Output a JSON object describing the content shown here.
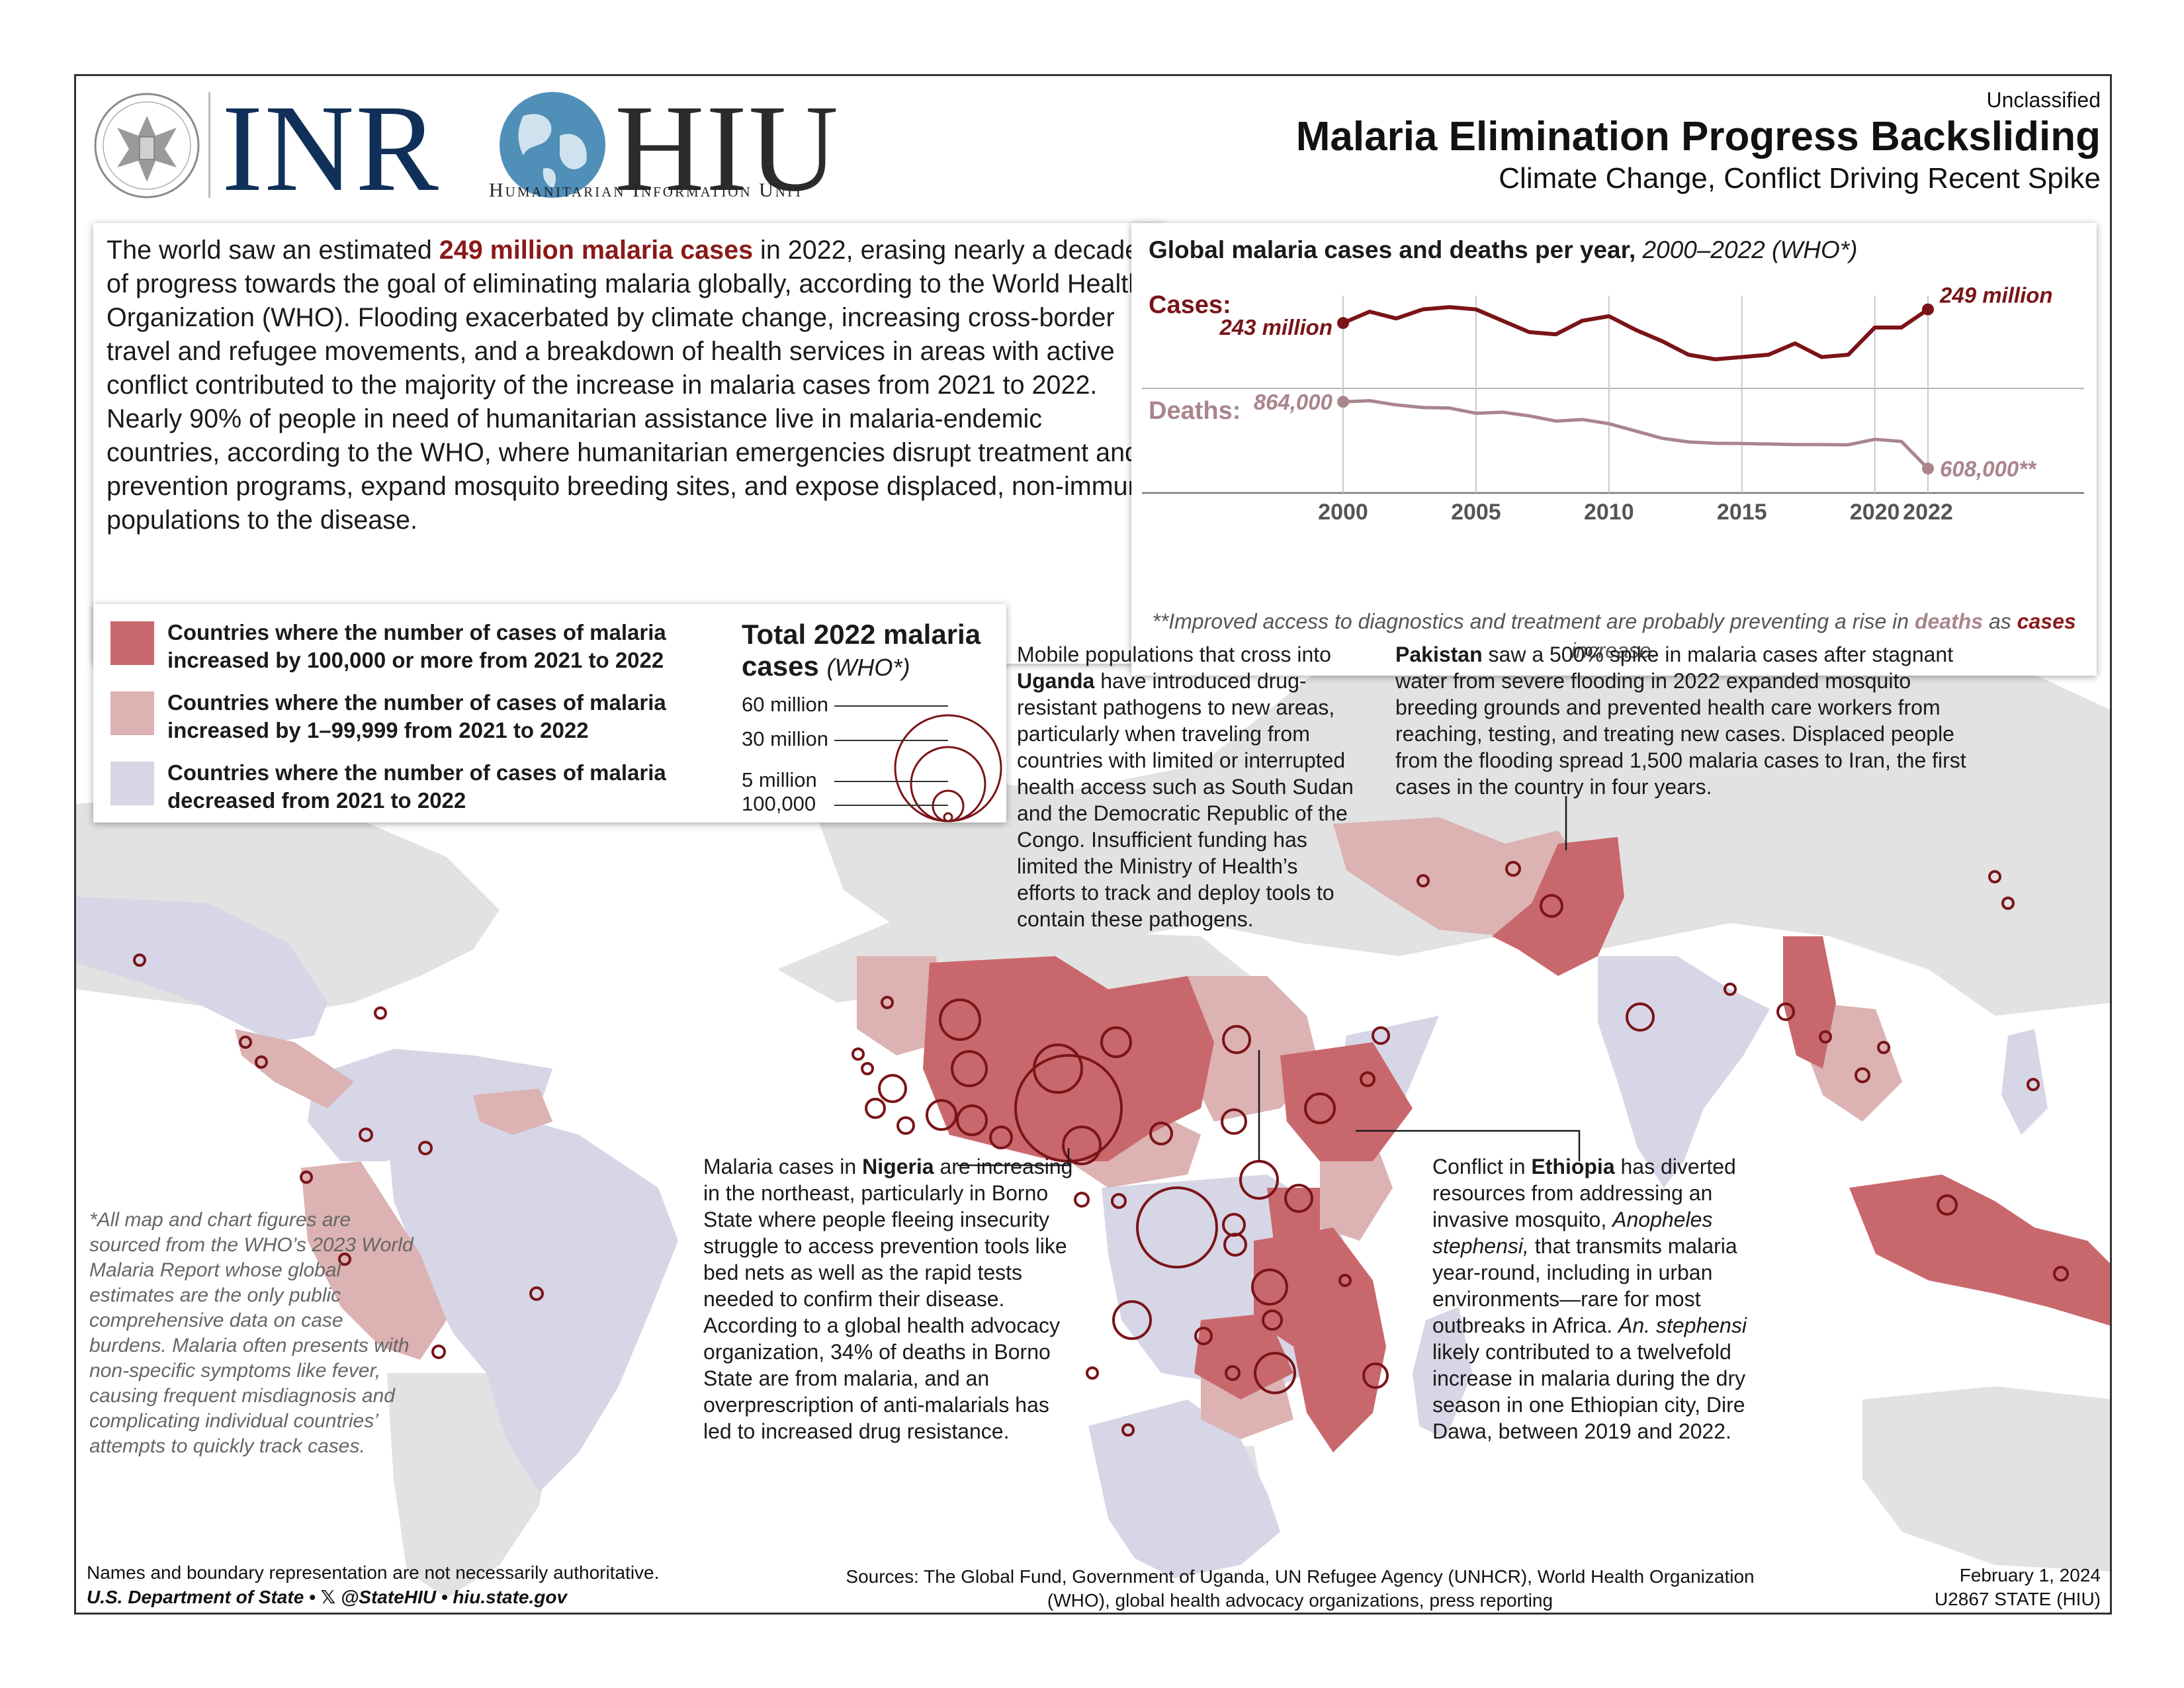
{
  "header": {
    "org_left": "INR",
    "org_right": "HIU",
    "unit_name": "Humanitarian Information Unit",
    "classification": "Unclassified",
    "title": "Malaria Elimination Progress Backsliding",
    "subtitle": "Climate Change, Conflict Driving Recent Spike"
  },
  "intro": {
    "before": "The world saw an estimated ",
    "highlight": "249 million malaria cases",
    "after": " in 2022, erasing nearly a decade of progress towards the goal of eliminating malaria globally, according to the World Health Organization (WHO). Flooding exacerbated by climate change, increasing cross-border travel and refugee movements, and a breakdown of health services in areas with active conflict contributed to the majority of the increase in malaria cases from 2021 to 2022. Nearly 90% of people in need of humanitarian assistance live in malaria-endemic countries, according to the WHO, where humanitarian emergencies disrupt treatment and prevention programs, expand mosquito breeding sites, and expose displaced, non-immune populations to the disease."
  },
  "chart_data": {
    "type": "line",
    "title": "Global malaria cases and deaths per year,",
    "title_suffix": "2000–2022 (WHO*)",
    "x": [
      2000,
      2001,
      2002,
      2003,
      2004,
      2005,
      2006,
      2007,
      2008,
      2009,
      2010,
      2011,
      2012,
      2013,
      2014,
      2015,
      2016,
      2017,
      2018,
      2019,
      2020,
      2021,
      2022
    ],
    "x_ticks": [
      "2000",
      "2005",
      "2010",
      "2015",
      "2020",
      "2022"
    ],
    "series": [
      {
        "name": "Cases:",
        "color": "#7a1418",
        "start_label": "243 million",
        "end_label": "249 million",
        "values": [
          243,
          248,
          245,
          249,
          250,
          249,
          244,
          239,
          238,
          244,
          246,
          240,
          235,
          229,
          227,
          228,
          229,
          234,
          228,
          229,
          241,
          241,
          249
        ]
      },
      {
        "name": "Deaths:",
        "color": "#a9858c",
        "start_label": "864,000",
        "end_label": "608,000**",
        "values": [
          864,
          868,
          852,
          842,
          840,
          820,
          824,
          810,
          790,
          796,
          780,
          752,
          724,
          710,
          705,
          704,
          702,
          700,
          700,
          699,
          720,
          712,
          608
        ]
      }
    ],
    "note_before": "**Improved access to diagnostics and treatment are probably preventing a rise in ",
    "note_deaths": "deaths",
    "note_mid": " as ",
    "note_cases": "cases",
    "note_after": " increase."
  },
  "legend": {
    "items": [
      {
        "color": "#c9686c",
        "label": "Countries where the number of cases of malaria increased by 100,000 or more from 2021 to 2022"
      },
      {
        "color": "#dcb2b3",
        "label": "Countries where the number of cases of malaria increased by 1–99,999 from 2021 to 2022"
      },
      {
        "color": "#d6d6e6",
        "label": "Countries where the number of cases of malaria decreased from 2021 to 2022"
      }
    ],
    "size_title": "Total 2022 malaria cases",
    "size_title_suffix": "(WHO*)",
    "sizes": [
      "60 million",
      "30 million",
      "5 million",
      "100,000"
    ]
  },
  "annotations": {
    "uganda_before": "Mobile populations that cross into ",
    "uganda_bold": "Uganda",
    "uganda_after": " have introduced drug-resistant pathogens to new areas, particularly when traveling from countries with limited or interrupted health access such as South Sudan and the Democratic Republic of the Congo. Insufficient funding has limited the Ministry of Health’s efforts to track and deploy tools to contain these pathogens.",
    "pakistan_bold": "Pakistan",
    "pakistan_after": " saw a 500% spike in malaria cases after stagnant water from severe flooding in 2022 expanded mosquito breeding grounds and prevented health care workers from reaching, testing, and treating new cases. Displaced people from the flooding spread 1,500 malaria cases to Iran, the first cases in the country in four years.",
    "nigeria_before": "Malaria cases in ",
    "nigeria_bold": "Nigeria",
    "nigeria_after": " are increasing in the northeast, particularly in Borno State where people fleeing insecurity struggle to access prevention tools like bed nets as well as the rapid tests needed to confirm their disease. According to a global health advocacy organization, 34% of deaths in Borno State are from malaria, and an overprescription of anti-malarials has led to increased drug resistance.",
    "ethiopia_before": "Conflict in ",
    "ethiopia_bold": "Ethiopia",
    "ethiopia_mid": " has diverted resources from addressing an invasive mosquito, ",
    "ethiopia_italic": "Anopheles stephensi,",
    "ethiopia_mid2": " that transmits malaria year-round, including in urban environments—rare for most outbreaks in Africa. ",
    "ethiopia_italic2": "An. stephensi",
    "ethiopia_after": " likely contributed to a twelvefold increase in malaria during the dry season in one Ethiopian city, Dire Dawa, between 2019 and 2022."
  },
  "footnote": "*All map and chart figures are sourced from the WHO’s 2023 World Malaria Report whose global estimates are the only public comprehensive data on case burdens. Malaria often presents with non-specific symptoms like fever, causing frequent misdiagnosis and complicating individual countries’ attempts to quickly track cases.",
  "footer": {
    "disclaimer": "Names and boundary representation are not necessarily authoritative.",
    "dept": "U.S. Department of State •  𝕏 @StateHIU • hiu.state.gov",
    "sources": "Sources: The Global Fund, Government of Uganda, UN Refugee Agency (UNHCR), World Health Organization (WHO), global health advocacy organizations, press reporting",
    "date": "February 1, 2024",
    "code": "U2867 STATE (HIU)"
  },
  "colors": {
    "increase_large": "#c9686c",
    "increase_small": "#dcb2b3",
    "decrease": "#d6d6e6",
    "land_other": "#e2e2e2",
    "circle": "#7a1418",
    "navy": "#10305a"
  }
}
